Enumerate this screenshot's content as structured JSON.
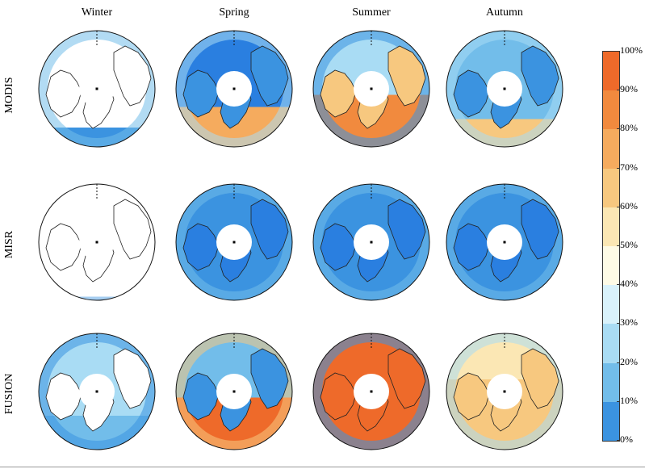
{
  "seasons": [
    "Winter",
    "Spring",
    "Summer",
    "Autumn"
  ],
  "datasets": [
    "MODIS",
    "MISR",
    "FUSION"
  ],
  "colorbar": {
    "labels": [
      "100%",
      "90%",
      "80%",
      "70%",
      "60%",
      "50%",
      "40%",
      "30%",
      "20%",
      "10%",
      "0%"
    ],
    "colors": [
      "#ee6a2a",
      "#f18a3e",
      "#f5ab5e",
      "#f7c87f",
      "#fbe7b4",
      "#fefbe6",
      "#d9f2fb",
      "#a9dcf4",
      "#72bdea",
      "#3b93e0",
      "#1a6fe0"
    ]
  },
  "panels": [
    {
      "row": 0,
      "col": 0,
      "land": "#ffffff",
      "ocean": "#ffffff",
      "fill": "#3b93e0",
      "fill_level": 0.18,
      "secondary": "#72bdea"
    },
    {
      "row": 0,
      "col": 1,
      "land": "#3b93e0",
      "ocean": "#2a7fe0",
      "fill": "#f5ab5e",
      "fill_level": 0.35,
      "secondary": "#a9dcf4"
    },
    {
      "row": 0,
      "col": 2,
      "land": "#f7c87f",
      "ocean": "#a9dcf4",
      "fill": "#f18a3e",
      "fill_level": 0.45,
      "secondary": "#3b93e0"
    },
    {
      "row": 0,
      "col": 3,
      "land": "#3b93e0",
      "ocean": "#72bdea",
      "fill": "#f7c87f",
      "fill_level": 0.25,
      "secondary": "#a9dcf4"
    },
    {
      "row": 1,
      "col": 0,
      "land": "#ffffff",
      "ocean": "#ffffff",
      "fill": "#3b93e0",
      "fill_level": 0.05,
      "secondary": "#ffffff"
    },
    {
      "row": 1,
      "col": 1,
      "land": "#2a7fe0",
      "ocean": "#3b93e0",
      "fill": "#3b93e0",
      "fill_level": 0.1,
      "secondary": "#72bdea"
    },
    {
      "row": 1,
      "col": 2,
      "land": "#2a7fe0",
      "ocean": "#3b93e0",
      "fill": "#3b93e0",
      "fill_level": 0.1,
      "secondary": "#72bdea"
    },
    {
      "row": 1,
      "col": 3,
      "land": "#2a7fe0",
      "ocean": "#3b93e0",
      "fill": "#3b93e0",
      "fill_level": 0.1,
      "secondary": "#72bdea"
    },
    {
      "row": 2,
      "col": 0,
      "land": "#ffffff",
      "ocean": "#a9dcf4",
      "fill": "#72bdea",
      "fill_level": 0.3,
      "secondary": "#3b93e0"
    },
    {
      "row": 2,
      "col": 1,
      "land": "#3b93e0",
      "ocean": "#72bdea",
      "fill": "#ee6a2a",
      "fill_level": 0.45,
      "secondary": "#f7c87f"
    },
    {
      "row": 2,
      "col": 2,
      "land": "#ee6a2a",
      "ocean": "#ee6a2a",
      "fill": "#ee6a2a",
      "fill_level": 0.8,
      "secondary": "#3b93e0"
    },
    {
      "row": 2,
      "col": 3,
      "land": "#f7c87f",
      "ocean": "#fbe7b4",
      "fill": "#f7c87f",
      "fill_level": 0.6,
      "secondary": "#a9dcf4"
    }
  ]
}
